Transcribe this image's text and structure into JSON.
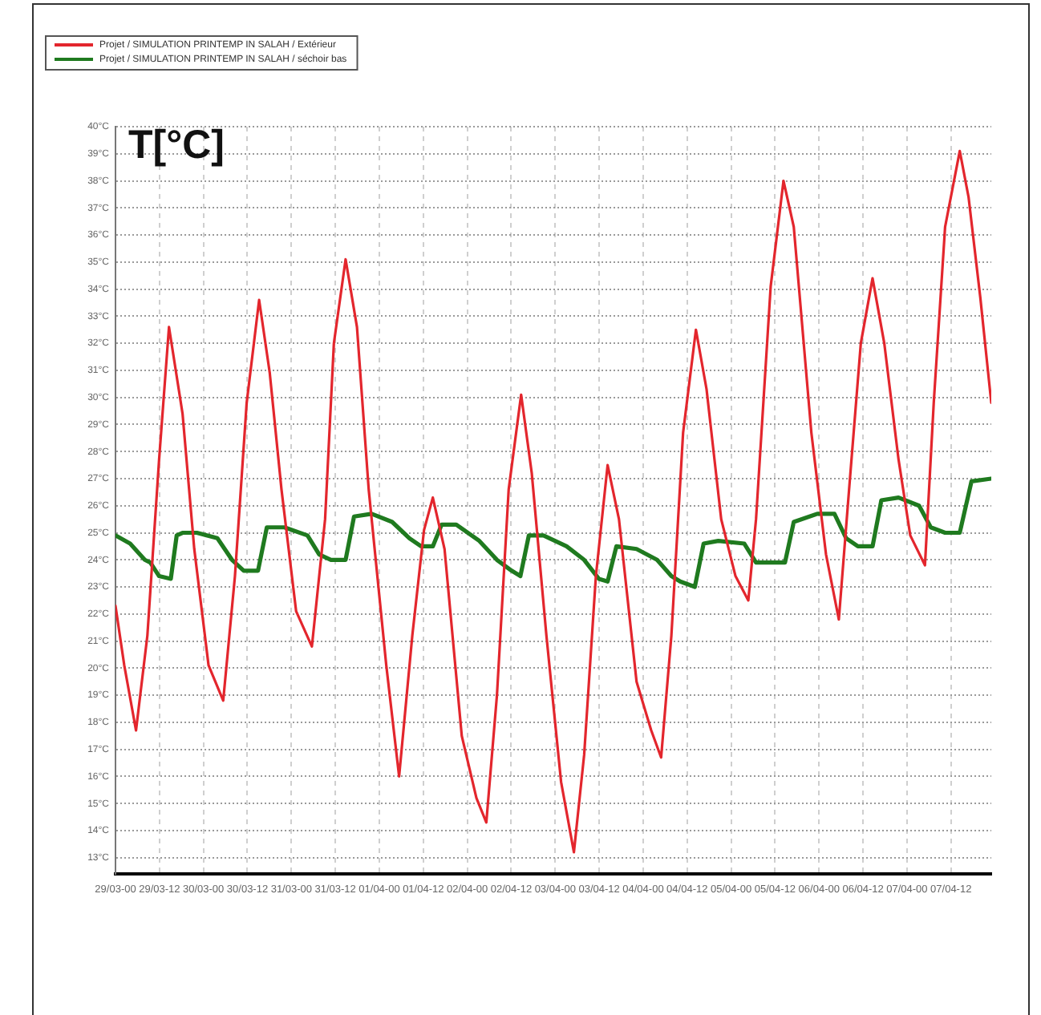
{
  "chart_data": {
    "type": "line",
    "ylabel": "T[°C]",
    "xlim": [
      "--03-29T00:00",
      "--04-07T23:00"
    ],
    "ylim": [
      12.4,
      40
    ],
    "xticks": [
      {
        "value": "--03-29T00:00",
        "label": "29/03-00"
      },
      {
        "value": "--03-29T12:00",
        "label": "29/03-12"
      },
      {
        "value": "--03-30T00:00",
        "label": "30/03-00"
      },
      {
        "value": "--03-30T12:00",
        "label": "30/03-12"
      },
      {
        "value": "--03-31T00:00",
        "label": "31/03-00"
      },
      {
        "value": "--03-31T12:00",
        "label": "31/03-12"
      },
      {
        "value": "--04-01T00:00",
        "label": "01/04-00"
      },
      {
        "value": "--04-01T12:00",
        "label": "01/04-12"
      },
      {
        "value": "--04-02T00:00",
        "label": "02/04-00"
      },
      {
        "value": "--04-02T12:00",
        "label": "02/04-12"
      },
      {
        "value": "--04-03T00:00",
        "label": "03/04-00"
      },
      {
        "value": "--04-03T12:00",
        "label": "03/04-12"
      },
      {
        "value": "--04-04T00:00",
        "label": "04/04-00"
      },
      {
        "value": "--04-04T12:00",
        "label": "04/04-12"
      },
      {
        "value": "--04-05T00:00",
        "label": "05/04-00"
      },
      {
        "value": "--04-05T12:00",
        "label": "05/04-12"
      },
      {
        "value": "--04-06T00:00",
        "label": "06/04-00"
      },
      {
        "value": "--04-06T12:00",
        "label": "06/04-12"
      },
      {
        "value": "--04-07T00:00",
        "label": "07/04-00"
      },
      {
        "value": "--04-07T12:00",
        "label": "07/04-12"
      }
    ],
    "yticks": [
      {
        "value": 13,
        "label": "13°C"
      },
      {
        "value": 14,
        "label": "14°C"
      },
      {
        "value": 15,
        "label": "15°C"
      },
      {
        "value": 16,
        "label": "16°C"
      },
      {
        "value": 17,
        "label": "17°C"
      },
      {
        "value": 18,
        "label": "18°C"
      },
      {
        "value": 19,
        "label": "19°C"
      },
      {
        "value": 20,
        "label": "20°C"
      },
      {
        "value": 21,
        "label": "21°C"
      },
      {
        "value": 22,
        "label": "22°C"
      },
      {
        "value": 23,
        "label": "23°C"
      },
      {
        "value": 24,
        "label": "24°C"
      },
      {
        "value": 25,
        "label": "25°C"
      },
      {
        "value": 26,
        "label": "26°C"
      },
      {
        "value": 27,
        "label": "27°C"
      },
      {
        "value": 28,
        "label": "28°C"
      },
      {
        "value": 29,
        "label": "29°C"
      },
      {
        "value": 30,
        "label": "30°C"
      },
      {
        "value": 31,
        "label": "31°C"
      },
      {
        "value": 32,
        "label": "32°C"
      },
      {
        "value": 33,
        "label": "33°C"
      },
      {
        "value": 34,
        "label": "34°C"
      },
      {
        "value": 35,
        "label": "35°C"
      },
      {
        "value": 36,
        "label": "36°C"
      },
      {
        "value": 37,
        "label": "37°C"
      },
      {
        "value": 38,
        "label": "38°C"
      },
      {
        "value": 39,
        "label": "39°C"
      },
      {
        "value": 40,
        "label": "40°C"
      }
    ],
    "grid": true,
    "legend": "top left",
    "series": [
      {
        "name": "Projet / SIMULATION PRINTEMP IN SALAH / Extérieur",
        "color": "#e3262d",
        "x": [
          "--03-29T00:00",
          "--03-29T02:24",
          "--03-29T05:36",
          "--03-29T08:42",
          "--03-29T11:54",
          "--03-29T14:36",
          "--03-29T18:18",
          "--03-29T21:30",
          "--03-30T01:24",
          "--03-30T05:24",
          "--03-30T08:36",
          "--03-30T11:48",
          "--03-30T15:12",
          "--03-30T18:06",
          "--03-30T21:18",
          "--03-31T01:18",
          "--03-31T05:36",
          "--03-31T09:12",
          "--03-31T11:36",
          "--03-31T14:48",
          "--03-31T17:54",
          "--03-31T21:06",
          "--04-01T01:54",
          "--04-01T05:24",
          "--04-01T09:00",
          "--04-01T12:12",
          "--04-01T14:36",
          "--04-01T17:48",
          "--04-01T22:30",
          "--04-02T02:30",
          "--04-02T05:12",
          "--04-02T08:06",
          "--04-02T11:18",
          "--04-02T14:42",
          "--04-02T17:36",
          "--04-02T21:36",
          "--04-03T01:36",
          "--04-03T05:06",
          "--04-03T07:54",
          "--04-03T11:06",
          "--04-03T14:18",
          "--04-03T17:24",
          "--04-03T22:12",
          "--04-04T02:12",
          "--04-04T04:54",
          "--04-04T07:42",
          "--04-04T10:54",
          "--04-04T14:24",
          "--04-04T17:18",
          "--04-04T21:18",
          "--04-05T01:12",
          "--04-05T04:42",
          "--04-05T06:48",
          "--04-05T10:48",
          "--04-05T14:18",
          "--04-05T17:06",
          "--04-05T21:54",
          "--04-06T01:54",
          "--04-06T05:24",
          "--04-06T08:12",
          "--04-06T11:24",
          "--04-06T14:36",
          "--04-06T17:48",
          "--04-06T21:42",
          "--04-07T00:54",
          "--04-07T04:54",
          "--04-07T07:18",
          "--04-07T10:24",
          "--04-07T14:24",
          "--04-07T16:48",
          "--04-07T20:00",
          "--04-07T23:00"
        ],
        "values": [
          22.3,
          20.1,
          17.7,
          21.2,
          27.7,
          32.6,
          29.4,
          24.4,
          20.1,
          18.8,
          23.4,
          29.8,
          33.6,
          30.9,
          26.6,
          22.1,
          20.8,
          25.5,
          32.0,
          35.1,
          32.6,
          26.6,
          20.1,
          16.0,
          21.2,
          25.1,
          26.3,
          24.4,
          17.5,
          15.2,
          14.3,
          19.0,
          26.6,
          30.1,
          27.2,
          21.2,
          15.8,
          13.2,
          16.8,
          23.4,
          27.5,
          25.5,
          19.5,
          17.7,
          16.7,
          21.2,
          28.7,
          32.5,
          30.3,
          25.5,
          23.4,
          22.5,
          25.5,
          34.1,
          38.0,
          36.3,
          28.7,
          24.2,
          21.8,
          26.6,
          32.0,
          34.4,
          32.0,
          27.7,
          24.9,
          23.8,
          29.8,
          36.3,
          39.1,
          37.4,
          33.7,
          29.8
        ]
      },
      {
        "name": "Projet / SIMULATION PRINTEMP IN SALAH / séchoir bas",
        "color": "#1f7a1f",
        "x": [
          "--03-29T00:00",
          "--03-29T04:00",
          "--03-29T08:00",
          "--03-29T09:30",
          "--03-29T11:54",
          "--03-29T15:06",
          "--03-29T16:42",
          "--03-29T18:18",
          "--03-29T22:12",
          "--03-30T03:48",
          "--03-30T07:48",
          "--03-30T11:00",
          "--03-30T14:54",
          "--03-30T17:18",
          "--03-30T22:06",
          "--03-31T04:24",
          "--03-31T07:36",
          "--03-31T10:48",
          "--03-31T14:48",
          "--03-31T17:06",
          "--03-31T21:54",
          "--04-01T03:30",
          "--04-01T08:12",
          "--04-01T11:24",
          "--04-01T14:36",
          "--04-01T17:00",
          "--04-01T21:00",
          "--04-02T03:18",
          "--04-02T08:06",
          "--04-02T12:06",
          "--04-02T14:30",
          "--04-02T16:48",
          "--04-02T20:48",
          "--04-03T03:06",
          "--04-03T07:54",
          "--04-03T11:54",
          "--04-03T14:18",
          "--04-03T16:42",
          "--04-03T22:12",
          "--04-04T03:48",
          "--04-04T07:42",
          "--04-04T10:06",
          "--04-04T14:06",
          "--04-04T16:30",
          "--04-04T20:30",
          "--04-05T03:36",
          "--04-05T06:48",
          "--04-05T14:42",
          "--04-05T17:06",
          "--04-05T23:30",
          "--04-06T04:12",
          "--04-06T07:24",
          "--04-06T10:36",
          "--04-06T14:36",
          "--04-06T17:00",
          "--04-06T21:42",
          "--04-07T03:18",
          "--04-07T06:30",
          "--04-07T10:24",
          "--04-07T14:24",
          "--04-07T17:36",
          "--04-07T23:00"
        ],
        "values": [
          24.9,
          24.6,
          24.0,
          23.9,
          23.4,
          23.3,
          24.9,
          25.0,
          25.0,
          24.8,
          24.0,
          23.6,
          23.6,
          25.2,
          25.2,
          24.9,
          24.2,
          24.0,
          24.0,
          25.6,
          25.7,
          25.4,
          24.8,
          24.5,
          24.5,
          25.3,
          25.3,
          24.7,
          24.0,
          23.6,
          23.4,
          24.9,
          24.9,
          24.5,
          24.0,
          23.3,
          23.2,
          24.5,
          24.4,
          24.0,
          23.4,
          23.2,
          23.0,
          24.6,
          24.7,
          24.6,
          23.9,
          23.9,
          25.4,
          25.7,
          25.7,
          24.8,
          24.5,
          24.5,
          26.2,
          26.3,
          26.0,
          25.2,
          25.0,
          25.0,
          26.9,
          27.0
        ]
      }
    ]
  }
}
